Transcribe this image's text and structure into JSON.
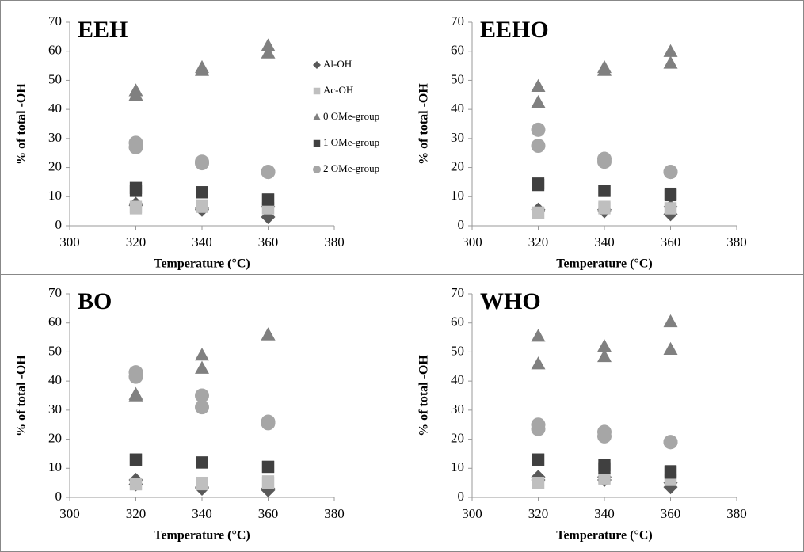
{
  "chart_data": [
    {
      "type": "scatter",
      "title": "EEH",
      "title_color": "#e8141c",
      "xlabel": "Temperature (°C)",
      "ylabel": "% of total -OH",
      "xlim": [
        300,
        380
      ],
      "xticks": [
        300,
        320,
        340,
        360,
        380
      ],
      "ylim": [
        0,
        70
      ],
      "yticks": [
        0,
        10,
        20,
        30,
        40,
        50,
        60,
        70
      ],
      "legend": "right",
      "x": [
        320,
        320,
        340,
        340,
        360,
        360
      ],
      "series": [
        {
          "name": "Al-OH",
          "color": "#595959",
          "marker": "diamond",
          "values": [
            7.5,
            7,
            6,
            5.5,
            6.5,
            3
          ]
        },
        {
          "name": "Ac-OH",
          "color": "#bfbfbf",
          "marker": "square",
          "values": [
            6,
            6.5,
            7,
            6.5,
            6,
            6
          ]
        },
        {
          "name": "0 OMe-group",
          "color": "#808080",
          "marker": "triangle",
          "values": [
            46.5,
            45,
            54.5,
            53.5,
            62,
            59.5
          ]
        },
        {
          "name": "1 OMe-group",
          "color": "#404040",
          "marker": "square",
          "values": [
            13,
            12,
            11.5,
            11.5,
            9,
            9
          ]
        },
        {
          "name": "2 OMe-group",
          "color": "#a6a6a6",
          "marker": "circle",
          "values": [
            28.5,
            27,
            22,
            21.5,
            18.5,
            18.5
          ]
        }
      ]
    },
    {
      "type": "scatter",
      "title": "EEHO",
      "title_color": "#1db04f",
      "xlabel": "Temperature (°C)",
      "ylabel": "% of total -OH",
      "xlim": [
        300,
        380
      ],
      "xticks": [
        300,
        320,
        340,
        360,
        380
      ],
      "ylim": [
        0,
        70
      ],
      "yticks": [
        0,
        10,
        20,
        30,
        40,
        50,
        60,
        70
      ],
      "x": [
        320,
        320,
        340,
        340,
        360,
        360
      ],
      "series": [
        {
          "color": "#595959",
          "marker": "diamond",
          "values": [
            5.5,
            5,
            5.5,
            5,
            6.5,
            4
          ]
        },
        {
          "color": "#bfbfbf",
          "marker": "square",
          "values": [
            4.5,
            4.5,
            6.5,
            6,
            6,
            6
          ]
        },
        {
          "color": "#808080",
          "marker": "triangle",
          "values": [
            48,
            42.5,
            54.5,
            53.5,
            60,
            56
          ]
        },
        {
          "color": "#404040",
          "marker": "square",
          "values": [
            14.5,
            14,
            12,
            12,
            11,
            10.5
          ]
        },
        {
          "color": "#a6a6a6",
          "marker": "circle",
          "values": [
            33,
            27.5,
            23,
            22,
            18.5,
            18.5
          ]
        }
      ]
    },
    {
      "type": "scatter",
      "title": "BO",
      "title_color": "#1f78c1",
      "xlabel": "Temperature (°C)",
      "ylabel": "% of total -OH",
      "xlim": [
        300,
        380
      ],
      "xticks": [
        300,
        320,
        340,
        360,
        380
      ],
      "ylim": [
        0,
        70
      ],
      "yticks": [
        0,
        10,
        20,
        30,
        40,
        50,
        60,
        70
      ],
      "x": [
        320,
        320,
        340,
        340,
        360,
        360
      ],
      "series": [
        {
          "color": "#595959",
          "marker": "diamond",
          "values": [
            6,
            4.5,
            3.5,
            3,
            3,
            2.5
          ]
        },
        {
          "color": "#bfbfbf",
          "marker": "square",
          "values": [
            4.5,
            4.5,
            5,
            4.5,
            5.5,
            5
          ]
        },
        {
          "color": "#808080",
          "marker": "triangle",
          "values": [
            35.5,
            35,
            49,
            44.5,
            56,
            56
          ]
        },
        {
          "color": "#404040",
          "marker": "square",
          "values": [
            13,
            13,
            12,
            12,
            10.5,
            10.5
          ]
        },
        {
          "color": "#a6a6a6",
          "marker": "circle",
          "values": [
            43,
            41.5,
            35,
            31,
            26,
            25.5
          ]
        }
      ]
    },
    {
      "type": "scatter",
      "title": "WHO",
      "title_color": "#e87722",
      "xlabel": "Temperature (°C)",
      "ylabel": "% of total -OH",
      "xlim": [
        300,
        380
      ],
      "xticks": [
        300,
        320,
        340,
        360,
        380
      ],
      "ylim": [
        0,
        70
      ],
      "yticks": [
        0,
        10,
        20,
        30,
        40,
        50,
        60,
        70
      ],
      "x": [
        320,
        320,
        340,
        340,
        360,
        360
      ],
      "series": [
        {
          "color": "#595959",
          "marker": "diamond",
          "values": [
            7,
            6,
            7,
            6,
            5,
            3.5
          ]
        },
        {
          "color": "#bfbfbf",
          "marker": "square",
          "values": [
            5,
            5,
            6.5,
            6.5,
            6,
            6
          ]
        },
        {
          "color": "#808080",
          "marker": "triangle",
          "values": [
            55.5,
            46,
            52,
            48.5,
            60.5,
            51
          ]
        },
        {
          "color": "#404040",
          "marker": "square",
          "values": [
            13,
            13,
            11,
            10,
            9,
            8.5
          ]
        },
        {
          "color": "#a6a6a6",
          "marker": "circle",
          "values": [
            25,
            23.5,
            22.5,
            21,
            19,
            19
          ]
        }
      ]
    }
  ]
}
